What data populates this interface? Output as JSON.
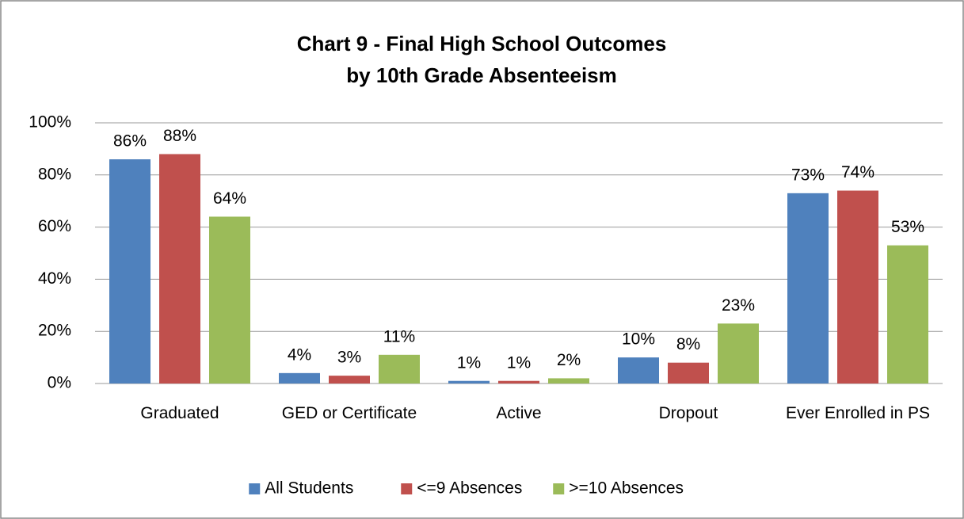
{
  "chart_data": {
    "type": "bar",
    "title": [
      "Chart 9 - Final High School Outcomes",
      "by 10th Grade Absenteeism"
    ],
    "categories": [
      "Graduated",
      "GED or Certificate",
      "Active",
      "Dropout",
      "Ever Enrolled in PS"
    ],
    "series": [
      {
        "name": "All Students",
        "color": "#4f81bd",
        "values": [
          86,
          4,
          1,
          10,
          73
        ],
        "value_labels": [
          "86%",
          "4%",
          "1%",
          "10%",
          "73%"
        ]
      },
      {
        "name": "<=9 Absences",
        "color": "#c0504d",
        "values": [
          88,
          3,
          1,
          8,
          74
        ],
        "value_labels": [
          "88%",
          "3%",
          "1%",
          "8%",
          "74%"
        ]
      },
      {
        "name": ">=10 Absences",
        "color": "#9bbb59",
        "values": [
          64,
          11,
          2,
          23,
          53
        ],
        "value_labels": [
          "64%",
          "11%",
          "2%",
          "23%",
          "53%"
        ]
      }
    ],
    "ylim": [
      0,
      100
    ],
    "yticks": [
      {
        "value": 0,
        "label": "0%"
      },
      {
        "value": 20,
        "label": "20%"
      },
      {
        "value": 40,
        "label": "40%"
      },
      {
        "value": 60,
        "label": "60%"
      },
      {
        "value": 80,
        "label": "80%"
      },
      {
        "value": 100,
        "label": "100%"
      }
    ],
    "grid": true,
    "legend": "bottom"
  }
}
